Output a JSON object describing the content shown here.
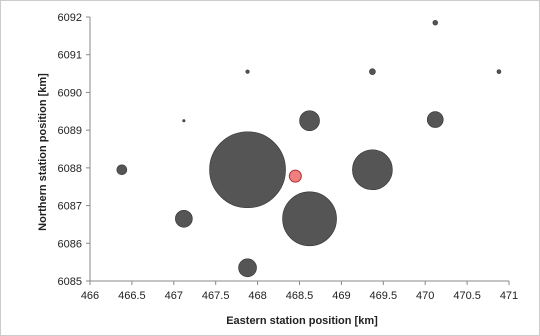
{
  "chart_data": {
    "type": "scatter",
    "xlabel": "Eastern station position [km]",
    "ylabel": "Northern station position [km]",
    "xlim": [
      466,
      471
    ],
    "ylim": [
      6085,
      6092
    ],
    "xticks": [
      "466",
      "466.5",
      "467",
      "467.5",
      "468",
      "468.5",
      "469",
      "469.5",
      "470",
      "470.5",
      "471"
    ],
    "yticks": [
      "6085",
      "6086",
      "6087",
      "6088",
      "6089",
      "6090",
      "6091",
      "6092"
    ],
    "grid": false,
    "legend": "none",
    "colors": {
      "points": "#555555",
      "highlight": "#f08080",
      "highlight_edge": "#b03030"
    },
    "points": [
      {
        "x": 470.12,
        "y": 6091.85,
        "size": 2.4
      },
      {
        "x": 467.88,
        "y": 6090.55,
        "size": 1.8
      },
      {
        "x": 469.37,
        "y": 6090.55,
        "size": 3.0
      },
      {
        "x": 470.88,
        "y": 6090.55,
        "size": 2.0
      },
      {
        "x": 467.12,
        "y": 6089.25,
        "size": 1.2
      },
      {
        "x": 468.62,
        "y": 6089.25,
        "size": 10.0
      },
      {
        "x": 470.12,
        "y": 6089.28,
        "size": 8.0
      },
      {
        "x": 466.38,
        "y": 6087.95,
        "size": 5.0
      },
      {
        "x": 467.88,
        "y": 6087.95,
        "size": 38.0
      },
      {
        "x": 469.37,
        "y": 6087.95,
        "size": 20.0
      },
      {
        "x": 467.12,
        "y": 6086.65,
        "size": 8.5
      },
      {
        "x": 468.62,
        "y": 6086.65,
        "size": 27.0
      },
      {
        "x": 467.88,
        "y": 6085.35,
        "size": 9.0
      }
    ],
    "highlight_point": {
      "x": 468.45,
      "y": 6087.78,
      "size": 6.0
    }
  }
}
